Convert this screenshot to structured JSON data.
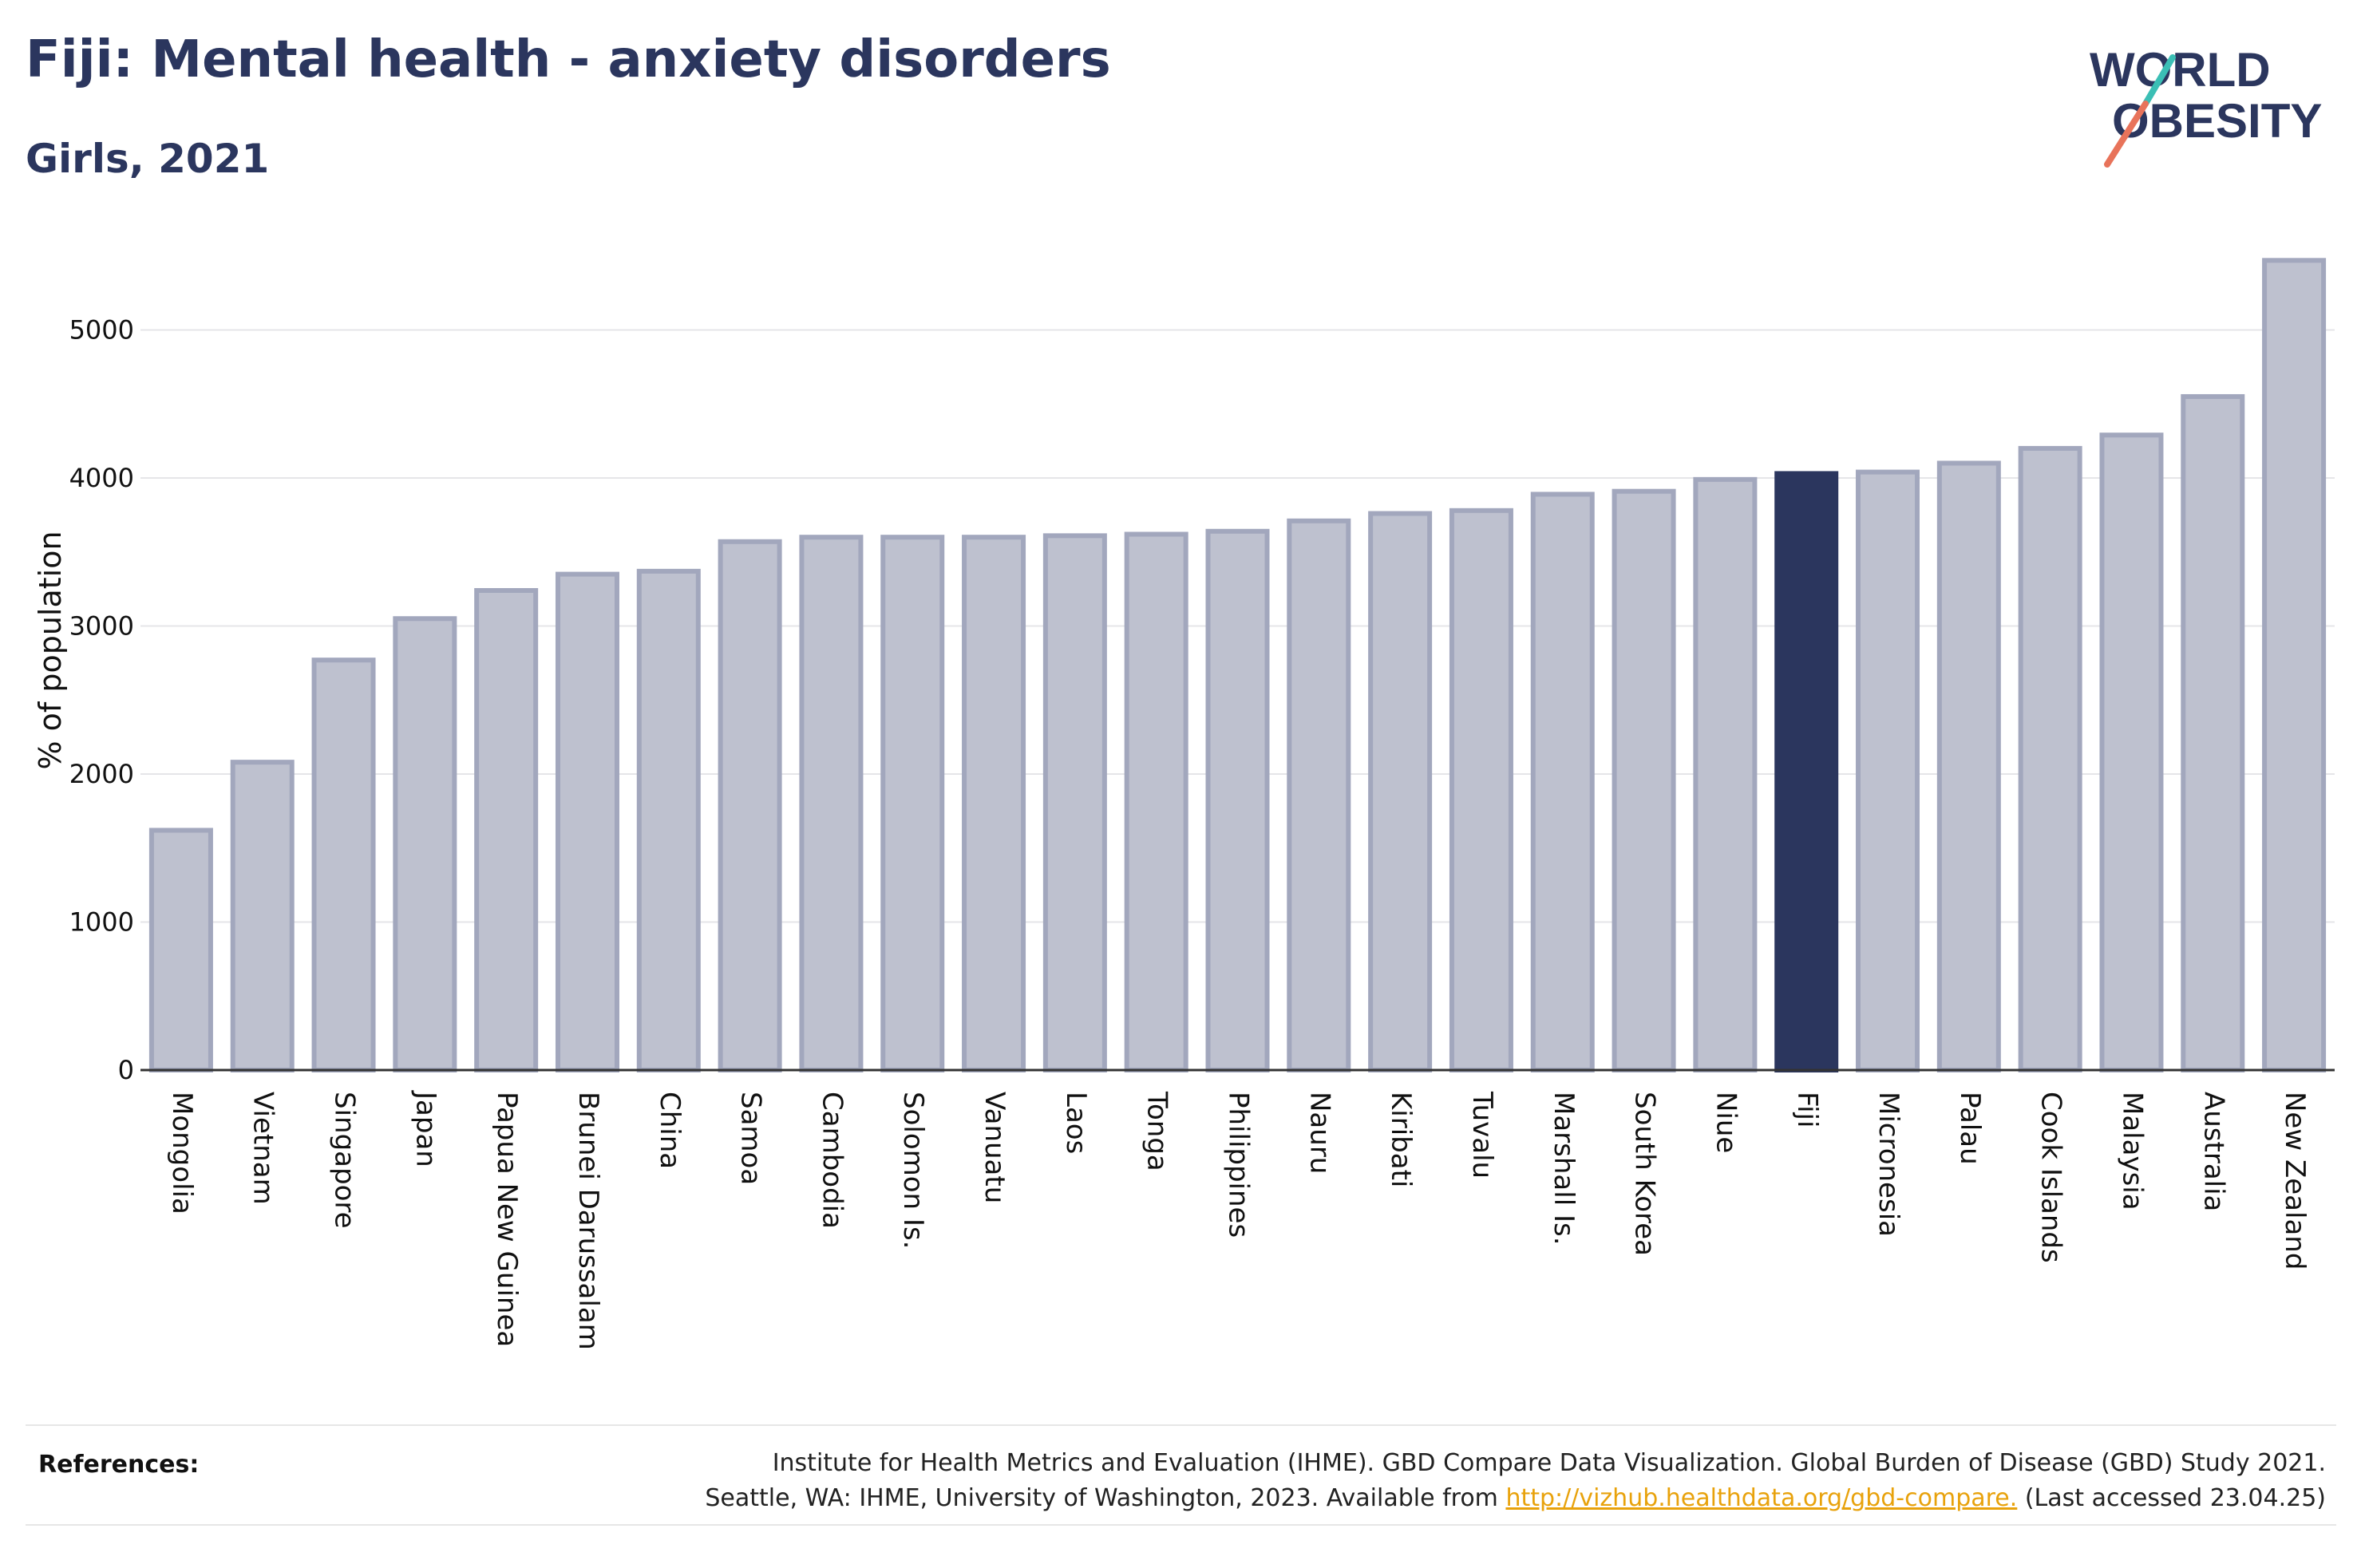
{
  "header": {
    "title": "Fiji: Mental health - anxiety disorders",
    "subtitle": "Girls, 2021"
  },
  "logo": {
    "line1": "WORLD",
    "line2": "OBESITY"
  },
  "colors": {
    "highlight": "#2b365e",
    "bar_fill": "#bec1cf",
    "bar_stroke": "#a2a7bd",
    "text": "#2b365e",
    "logo_teal": "#3bbfb5",
    "logo_coral": "#e8735a",
    "link": "#e8a20c"
  },
  "chart_data": {
    "type": "bar",
    "ylabel": "% of population",
    "ylim": [
      0,
      5600
    ],
    "yticks": [
      0,
      1000,
      2000,
      3000,
      4000,
      5000
    ],
    "grid": true,
    "highlight": "Fiji",
    "categories": [
      "Mongolia",
      "Vietnam",
      "Singapore",
      "Japan",
      "Papua New Guinea",
      "Brunei Darussalam",
      "China",
      "Samoa",
      "Cambodia",
      "Solomon Is.",
      "Vanuatu",
      "Laos",
      "Tonga",
      "Philippines",
      "Nauru",
      "Kiribati",
      "Tuvalu",
      "Marshall Is.",
      "South Korea",
      "Niue",
      "Fiji",
      "Micronesia",
      "Palau",
      "Cook Islands",
      "Malaysia",
      "Australia",
      "New Zealand"
    ],
    "values": [
      1620,
      2080,
      2770,
      3050,
      3240,
      3350,
      3370,
      3570,
      3600,
      3600,
      3600,
      3610,
      3620,
      3640,
      3710,
      3760,
      3780,
      3890,
      3910,
      3990,
      4030,
      4040,
      4100,
      4200,
      4290,
      4550,
      5470
    ]
  },
  "references": {
    "label": "References:",
    "line1": "Institute for Health Metrics and Evaluation (IHME). GBD Compare Data Visualization. Global Burden of Disease (GBD) Study 2021.",
    "line2_pre": "Seattle, WA: IHME, University of Washington, 2023. Available from ",
    "link": "http://vizhub.healthdata.org/gbd-compare.",
    "line2_post": " (Last accessed 23.04.25)"
  }
}
